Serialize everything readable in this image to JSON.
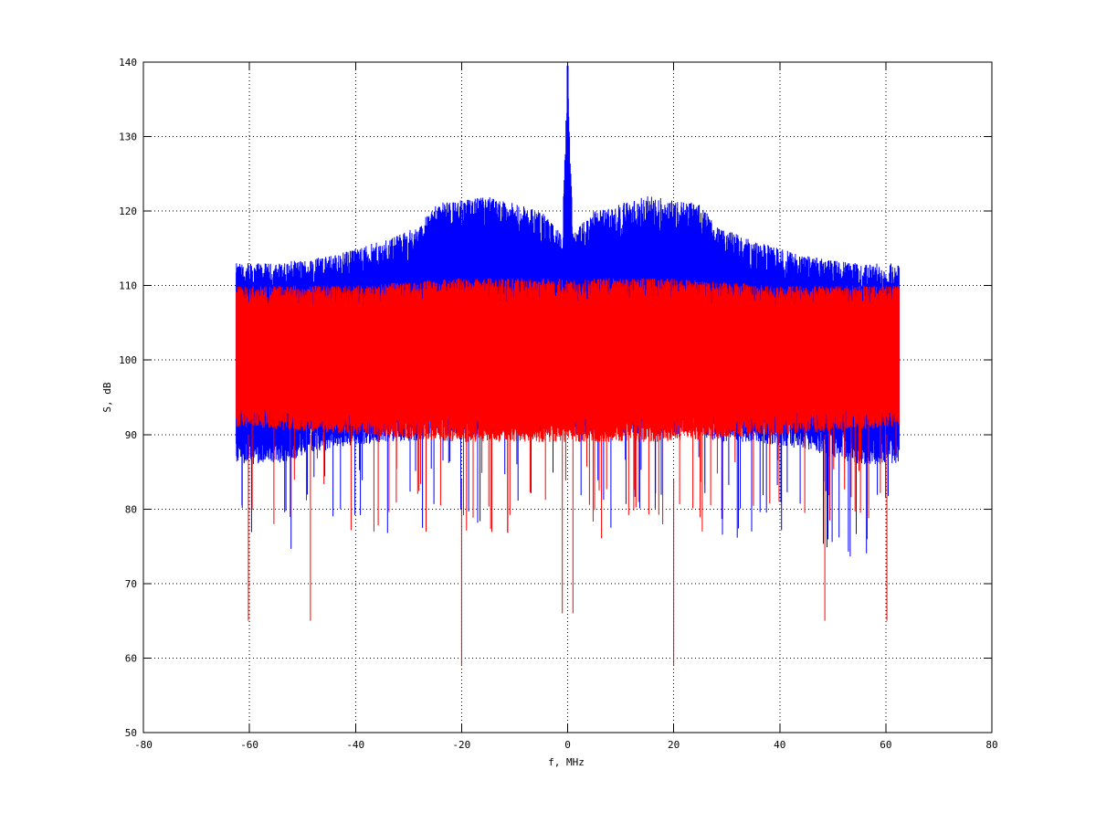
{
  "chart_data": {
    "type": "line",
    "title": "",
    "xlabel": "f, MHz",
    "ylabel": "S, dB",
    "xlim": [
      -80,
      80
    ],
    "ylim": [
      50,
      140
    ],
    "xticks": [
      -80,
      -60,
      -40,
      -20,
      0,
      20,
      40,
      60,
      80
    ],
    "yticks": [
      50,
      60,
      70,
      80,
      90,
      100,
      110,
      120,
      130,
      140
    ],
    "grid": true,
    "legend": "none",
    "series": [
      {
        "color": "#0000ff",
        "x_range": [
          -62.5,
          62.5
        ],
        "envelope": {
          "f": [
            -62.5,
            -55,
            -45,
            -35,
            -28,
            -25,
            -15,
            -5,
            -1,
            0,
            1,
            5,
            15,
            25,
            28,
            35,
            45,
            55,
            62.5
          ],
          "upper": [
            113,
            113,
            114,
            116,
            118,
            121,
            122,
            120,
            117,
            139.5,
            117,
            120,
            122,
            121,
            118,
            116,
            114,
            113,
            113
          ],
          "lower": [
            86,
            86,
            88,
            89,
            89,
            90,
            90,
            90,
            90,
            105,
            90,
            90,
            90,
            90,
            89,
            89,
            88,
            86,
            86
          ]
        }
      },
      {
        "color": "#ff0000",
        "x_range": [
          -62.5,
          62.5
        ],
        "envelope": {
          "f": [
            -62.5,
            -40,
            -20,
            0,
            20,
            40,
            62.5
          ],
          "upper": [
            110,
            110,
            111,
            111,
            111,
            110,
            110
          ],
          "lower": [
            91,
            90,
            89,
            89,
            89,
            90,
            91
          ]
        },
        "deep_dips": [
          {
            "x": -60.2,
            "y": 65
          },
          {
            "x": -48.5,
            "y": 65
          },
          {
            "x": -20,
            "y": 59
          },
          {
            "x": -1,
            "y": 66
          },
          {
            "x": 1,
            "y": 66
          },
          {
            "x": 20,
            "y": 59
          },
          {
            "x": 48.5,
            "y": 65
          },
          {
            "x": 60.2,
            "y": 65
          }
        ]
      }
    ]
  }
}
